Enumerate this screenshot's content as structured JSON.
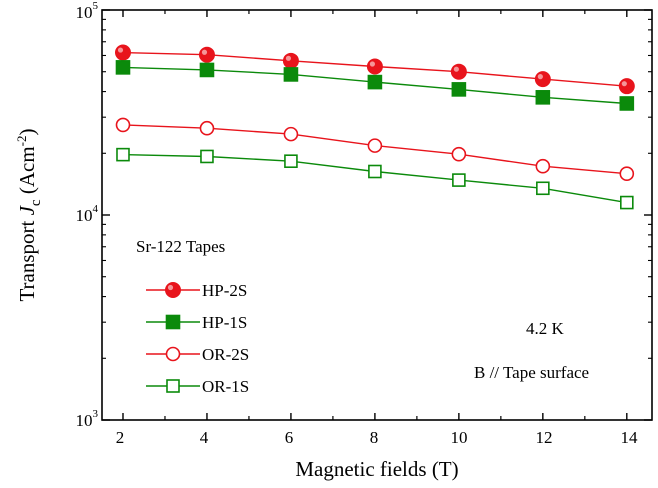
{
  "chart_data": {
    "type": "line",
    "yscale": "log",
    "x": [
      2,
      4,
      6,
      8,
      10,
      12,
      14
    ],
    "xlim": [
      1.5,
      14.6
    ],
    "ylim": [
      1000,
      100000
    ],
    "xticks": [
      2,
      4,
      6,
      8,
      10,
      12,
      14
    ],
    "xtick_labels": [
      "2",
      "4",
      "6",
      "8",
      "10",
      "12",
      "14"
    ],
    "ytick_labels": [
      {
        "base": "10",
        "exp": "3"
      },
      {
        "base": "10",
        "exp": "4"
      },
      {
        "base": "10",
        "exp": "5"
      }
    ],
    "xlabel": "Magnetic fields (T)",
    "ylabel": {
      "prefix": "Transport ",
      "italic": "J",
      "sub": "c",
      "unit_start": " (Acm",
      "unit_sup": "-2",
      "unit_end": ")"
    },
    "legend_title": "Sr-122 Tapes",
    "legend_position": "lower-left",
    "annotations": [
      "4.2 K",
      "B // Tape surface"
    ],
    "series": [
      {
        "name": "HP-2S",
        "color": "#e8141c",
        "marker": "circle-filled",
        "values": [
          62000,
          60500,
          56500,
          53000,
          50000,
          46000,
          42500
        ]
      },
      {
        "name": "HP-1S",
        "color": "#0b8a0b",
        "marker": "square-filled",
        "values": [
          52500,
          51000,
          48500,
          44500,
          41000,
          37500,
          35000
        ]
      },
      {
        "name": "OR-2S",
        "color": "#e8141c",
        "marker": "circle-open",
        "values": [
          27500,
          26500,
          24800,
          21800,
          19800,
          17300,
          15900
        ]
      },
      {
        "name": "OR-1S",
        "color": "#0b8a0b",
        "marker": "square-open",
        "values": [
          19700,
          19300,
          18300,
          16300,
          14800,
          13500,
          11500
        ]
      }
    ]
  }
}
